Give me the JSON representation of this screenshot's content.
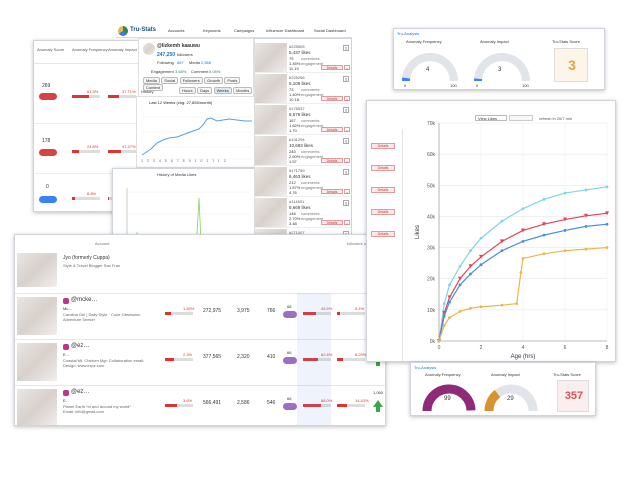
{
  "anomaly_panel": {
    "headers": [
      "Anomaly Score",
      "Anomaly Frequency",
      "Anomaly Impact"
    ],
    "rows": [
      {
        "score": "269",
        "freq": "61.5%",
        "impact": "37.71%",
        "pill": "#d64545"
      },
      {
        "score": "178",
        "freq": "24.8%",
        "impact": "47.47%",
        "pill": "#d64545"
      },
      {
        "score": "0",
        "freq": "8.8%",
        "impact": "2.6%",
        "pill": "#3b82f6"
      }
    ]
  },
  "header": {
    "logo_text": "Tru-Stats",
    "nav": [
      "Accounts",
      "Keywords",
      "Campaigns",
      "Influencer Dashboard",
      "Social Dashboard"
    ]
  },
  "profile": {
    "name": "@lizkemh kaauwu",
    "followers": "247,250",
    "followers_label": "followers",
    "following_label": "Following",
    "following": "667",
    "media_label": "Media",
    "media": "2,568",
    "engagement_label": "Engagement",
    "engagement": "3.68%",
    "comment_label": "Comment",
    "comment": "0.05%",
    "tabs": [
      "Media",
      "Social",
      "Followers",
      "Growth",
      "Posts",
      "Content"
    ],
    "subtabs": [
      "Hours",
      "Days",
      "Weeks",
      "Months"
    ],
    "history_label": "History"
  },
  "line_chart": {
    "title": "Last 12 Weeks (chg: 27,855/month)"
  },
  "history_chart": {
    "title": "History of Media Likes",
    "xlabel": "Age (weeks)"
  },
  "media_feed": [
    {
      "tag": "#225505",
      "likes": "5,437 likes",
      "comments": "79",
      "engagement": "1.45%",
      "sub": "11.19"
    },
    {
      "tag": "#225256",
      "likes": "5,109 likes",
      "comments": "73",
      "engagement": "1.40%",
      "sub": "10.18"
    },
    {
      "tag": "#176537",
      "likes": "6,576 likes",
      "comments": "167",
      "engagement": "1.62%",
      "sub": "1.70"
    },
    {
      "tag": "#131294",
      "likes": "10,683 likes",
      "comments": "245",
      "engagement": "2.60%",
      "sub": "1.57"
    },
    {
      "tag": "#171759",
      "likes": "6,463 likes",
      "comments": "212",
      "engagement": "1.57%",
      "sub": "4.76"
    },
    {
      "tag": "#114501",
      "likes": "8,669 likes",
      "comments": "148",
      "engagement": "2.70%",
      "sub": "3.48"
    },
    {
      "tag": "#271007",
      "likes": "4,662 likes",
      "comments": "149",
      "engagement": "1.34%",
      "sub": "1.82"
    },
    {
      "tag": "#284655",
      "likes": "7,519 likes",
      "comments": "",
      "engagement": "",
      "sub": ""
    }
  ],
  "feed_labels": {
    "comments": "comments",
    "engagement": "engagement",
    "details": "Details"
  },
  "account_list": {
    "header": "Account",
    "header_right": "followers of client",
    "first": {
      "name": "Jyo (formerly Cuppa)",
      "bio": "Style & Travel Blogger San Fran"
    },
    "rows": [
      {
        "handle": "@mcke…",
        "line1": "Mc…",
        "bio": "Carolina Girl | Daily Style · Color Obsession",
        "bio2": "Adventure Seeker",
        "pct": "1.59%",
        "followers": "272,975",
        "following": "3,975",
        "posts": "766",
        "score": "66",
        "freq": "45.5%",
        "impact": "5.4%",
        "count": "466"
      },
      {
        "handle": "@ez…",
        "line1": "E…",
        "bio": "Coastal Mt. Chicken Mgr. Collaboration email:",
        "bio2": "Design: www.ezpz.com",
        "pct": "2.3%",
        "followers": "377,565",
        "following": "2,320",
        "posts": "410",
        "score": "66",
        "freq": "62.6%",
        "impact": "8.29%",
        "count": "512"
      },
      {
        "handle": "@ez…",
        "line1": "E…",
        "bio": "Planet Earth *in and around my world*",
        "bio2": "Email: info@gmail.com",
        "pct": "3.6%",
        "followers": "566,491",
        "following": "2,586",
        "posts": "546",
        "score": "66",
        "freq": "68.0%",
        "impact": "14.43%",
        "count": "1,060"
      }
    ]
  },
  "gauge_top": {
    "brand": "Tru-Analysis",
    "freq_label": "Anomaly Frequency",
    "impact_label": "Anomaly Impact",
    "score_label": "Tru-Stats Score",
    "freq": "4",
    "impact": "3",
    "score": "3",
    "freq_frac": 0.04,
    "impact_frac": 0.03,
    "min": "0",
    "max": "100"
  },
  "gauge_bottom": {
    "brand": "Tru-Analysis",
    "freq_label": "Anomaly Frequency",
    "impact_label": "Anomaly Impact",
    "score_label": "Tru-Stats Score",
    "freq": "99",
    "impact": "29",
    "score": "357",
    "freq_frac": 0.99,
    "impact_frac": 0.29,
    "min": "0",
    "max": "100"
  },
  "big_chart_panel": {
    "view_label": "View Likes",
    "refresh_label": "refresh in 20/7 min",
    "side_labels": [
      "Details",
      "Details",
      "Details",
      "Details",
      "Details"
    ]
  },
  "chart_data": {
    "type": "line",
    "xlabel": "Age (hrs)",
    "ylabel": "Likes",
    "xlim": [
      0,
      8
    ],
    "ylim": [
      0,
      70000
    ],
    "x_ticks": [
      0,
      2,
      4,
      6,
      8
    ],
    "y_ticks": [
      "0k",
      "10k",
      "20k",
      "30k",
      "40k",
      "50k",
      "60k",
      "70k"
    ],
    "series": [
      {
        "color": "#7fd4e8",
        "marker": "dot",
        "x": [
          0,
          0.25,
          0.5,
          1,
          1.5,
          2,
          3,
          4,
          5,
          6,
          7,
          8
        ],
        "y": [
          0,
          12000,
          18000,
          24000,
          29000,
          33000,
          38500,
          42500,
          45500,
          47500,
          48500,
          49500
        ]
      },
      {
        "color": "#e0455a",
        "marker": "triangle",
        "x": [
          0,
          0.25,
          0.5,
          1,
          1.5,
          2,
          3,
          4,
          5,
          6,
          7,
          8
        ],
        "y": [
          0,
          9000,
          14000,
          20000,
          24000,
          27000,
          32000,
          35500,
          37500,
          39000,
          40200,
          41000
        ]
      },
      {
        "color": "#4a8fd9",
        "marker": "dot",
        "x": [
          0,
          0.25,
          0.5,
          1,
          1.5,
          2,
          3,
          4,
          5,
          6,
          7,
          8
        ],
        "y": [
          0,
          8000,
          12500,
          18000,
          21500,
          24500,
          29000,
          32000,
          34000,
          35500,
          36800,
          37500
        ]
      },
      {
        "color": "#e8b84a",
        "marker": "dot",
        "x": [
          0,
          0.25,
          0.5,
          1,
          1.5,
          2,
          3,
          3.7,
          3.9,
          4,
          5,
          6,
          7,
          8
        ],
        "y": [
          0,
          5000,
          7500,
          9500,
          10500,
          11000,
          11500,
          12000,
          22000,
          26500,
          28000,
          29000,
          29500,
          30000
        ]
      }
    ]
  }
}
